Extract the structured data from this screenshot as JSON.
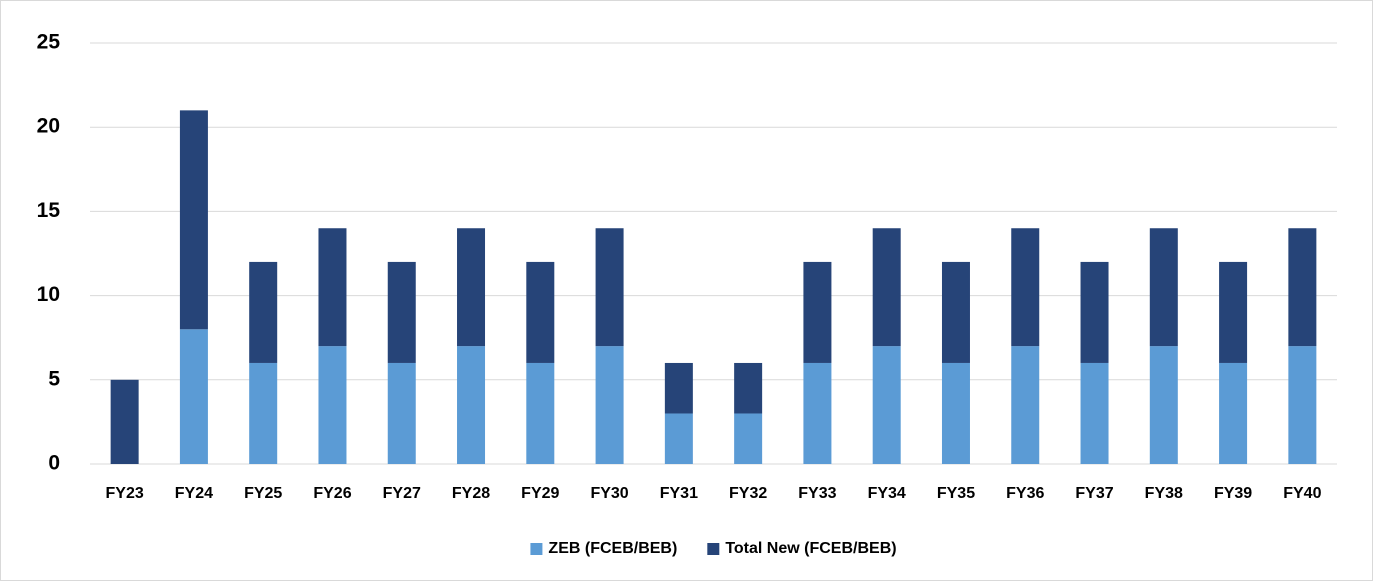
{
  "chart_data": {
    "type": "stacked_bar",
    "categories": [
      "FY23",
      "FY24",
      "FY25",
      "FY26",
      "FY27",
      "FY28",
      "FY29",
      "FY30",
      "FY31",
      "FY32",
      "FY33",
      "FY34",
      "FY35",
      "FY36",
      "FY37",
      "FY38",
      "FY39",
      "FY40"
    ],
    "series": [
      {
        "name": "ZEB (FCEB/BEB)",
        "color": "#5b9bd5",
        "values": [
          0,
          8,
          6,
          7,
          6,
          7,
          6,
          7,
          3,
          3,
          6,
          7,
          6,
          7,
          6,
          7,
          6,
          7
        ]
      },
      {
        "name": "Total New (FCEB/BEB)",
        "color": "#264478",
        "values": [
          5,
          13,
          6,
          7,
          6,
          7,
          6,
          7,
          3,
          3,
          6,
          7,
          6,
          7,
          6,
          7,
          6,
          7
        ]
      }
    ],
    "ylim": [
      0,
      25
    ],
    "yticks": [
      0,
      5,
      10,
      15,
      20,
      25
    ],
    "grid": true,
    "legend": "bottom"
  }
}
